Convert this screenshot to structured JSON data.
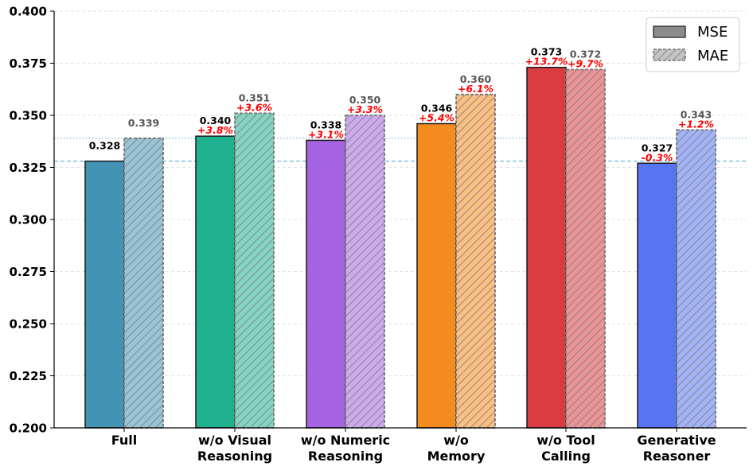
{
  "chart_data": {
    "type": "bar",
    "title": "",
    "xlabel": "",
    "ylabel": "",
    "ylim": [
      0.2,
      0.4
    ],
    "yticks": [
      "0.200",
      "0.225",
      "0.250",
      "0.275",
      "0.300",
      "0.325",
      "0.350",
      "0.375",
      "0.400"
    ],
    "grid": true,
    "legend_position": "top-right",
    "categories": [
      [
        "Full"
      ],
      [
        "w/o Visual",
        "Reasoning"
      ],
      [
        "w/o Numeric",
        "Reasoning"
      ],
      [
        "w/o",
        "Memory"
      ],
      [
        "w/o Tool",
        "Calling"
      ],
      [
        "Generative",
        "Reasoner"
      ]
    ],
    "colors": [
      "#4393b4",
      "#1fb18f",
      "#a463e0",
      "#f48b1e",
      "#d93d41",
      "#5874f1"
    ],
    "series": [
      {
        "name": "MSE",
        "values": [
          0.328,
          0.34,
          0.338,
          0.346,
          0.373,
          0.327
        ],
        "labels": [
          "0.328",
          "0.340",
          "0.338",
          "0.346",
          "0.373",
          "0.327"
        ],
        "pct_changes": [
          null,
          "+3.8%",
          "+3.1%",
          "+5.4%",
          "+13.7%",
          "-0.3%"
        ]
      },
      {
        "name": "MAE",
        "values": [
          0.339,
          0.351,
          0.35,
          0.36,
          0.372,
          0.343
        ],
        "labels": [
          "0.339",
          "0.351",
          "0.350",
          "0.360",
          "0.372",
          "0.343"
        ],
        "pct_changes": [
          null,
          "+3.6%",
          "+3.3%",
          "+6.1%",
          "+9.7%",
          "+1.2%"
        ]
      }
    ],
    "reference_lines": [
      {
        "series": "MSE",
        "value": 0.328,
        "style": "dashed"
      },
      {
        "series": "MAE",
        "value": 0.339,
        "style": "dotted"
      }
    ]
  }
}
